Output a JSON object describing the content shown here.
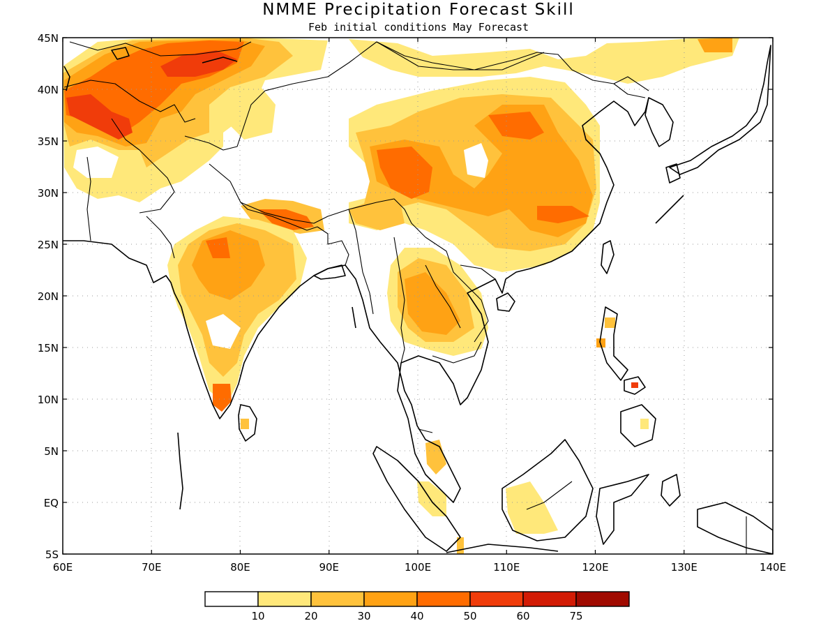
{
  "title": "NMME Precipitation Forecast Skill",
  "subtitle": "Feb initial conditions  May Forecast",
  "map": {
    "lon_range": [
      60,
      140
    ],
    "lat_range": [
      -5,
      45
    ],
    "x_ticks": [
      {
        "lon": 60,
        "label": "60E"
      },
      {
        "lon": 70,
        "label": "70E"
      },
      {
        "lon": 80,
        "label": "80E"
      },
      {
        "lon": 90,
        "label": "90E"
      },
      {
        "lon": 100,
        "label": "100E"
      },
      {
        "lon": 110,
        "label": "110E"
      },
      {
        "lon": 120,
        "label": "120E"
      },
      {
        "lon": 130,
        "label": "130E"
      },
      {
        "lon": 140,
        "label": "140E"
      }
    ],
    "y_ticks": [
      {
        "lat": 45,
        "label": "45N"
      },
      {
        "lat": 40,
        "label": "40N"
      },
      {
        "lat": 35,
        "label": "35N"
      },
      {
        "lat": 30,
        "label": "30N"
      },
      {
        "lat": 25,
        "label": "25N"
      },
      {
        "lat": 20,
        "label": "20N"
      },
      {
        "lat": 15,
        "label": "15N"
      },
      {
        "lat": 10,
        "label": "10N"
      },
      {
        "lat": 5,
        "label": "5N"
      },
      {
        "lat": 0,
        "label": "EQ"
      },
      {
        "lat": -5,
        "label": "5S"
      }
    ]
  },
  "colorbar": {
    "colors": [
      "#ffffff",
      "#ffe87a",
      "#ffc23c",
      "#ffa214",
      "#ff6c00",
      "#f03c0a",
      "#d21b05",
      "#a00a00"
    ],
    "labels": [
      "10",
      "20",
      "30",
      "40",
      "50",
      "60",
      "75"
    ]
  },
  "skill_regions": [
    {
      "lon": 61,
      "lat": 38,
      "level": 4
    },
    {
      "lon": 65,
      "lat": 35,
      "level": 4
    },
    {
      "lon": 72,
      "lat": 43,
      "level": 4
    },
    {
      "lon": 78,
      "lat": 42,
      "level": 4
    },
    {
      "lon": 75,
      "lat": 36,
      "level": 3
    },
    {
      "lon": 89,
      "lat": 27.5,
      "level": 4
    },
    {
      "lon": 99,
      "lat": 32,
      "level": 4
    },
    {
      "lon": 111,
      "lat": 36.5,
      "level": 4
    },
    {
      "lon": 118,
      "lat": 28,
      "level": 3
    },
    {
      "lon": 78,
      "lat": 24,
      "level": 3
    },
    {
      "lon": 77.5,
      "lat": 10.5,
      "level": 4
    },
    {
      "lon": 107,
      "lat": 16.5,
      "level": 3
    }
  ]
}
